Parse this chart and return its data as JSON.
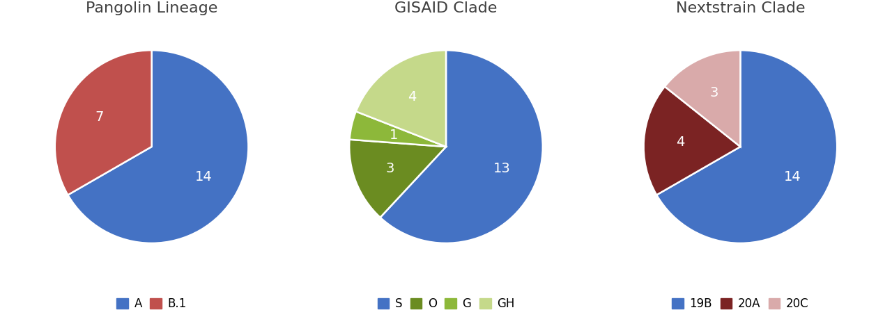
{
  "charts": [
    {
      "title": "Pangolin Lineage",
      "labels": [
        "A",
        "B.1"
      ],
      "values": [
        14,
        7
      ],
      "colors": [
        "#4472C4",
        "#C0504D"
      ],
      "legend_labels": [
        "A",
        "B.1"
      ],
      "startangle": 90,
      "counterclock": false
    },
    {
      "title": "GISAID Clade",
      "labels": [
        "S",
        "O",
        "G",
        "GH"
      ],
      "values": [
        13,
        3,
        1,
        4
      ],
      "colors": [
        "#4472C4",
        "#6B8C21",
        "#8DB83A",
        "#C5D98A"
      ],
      "legend_labels": [
        "S",
        "O",
        "G",
        "GH"
      ],
      "startangle": 90,
      "counterclock": false
    },
    {
      "title": "Nextstrain Clade",
      "labels": [
        "19B",
        "20A",
        "20C"
      ],
      "values": [
        14,
        4,
        3
      ],
      "colors": [
        "#4472C4",
        "#7B2323",
        "#D9AAAA"
      ],
      "legend_labels": [
        "19B",
        "20A",
        "20C"
      ],
      "startangle": 90,
      "counterclock": false
    }
  ],
  "background_color": "#FFFFFF",
  "title_fontsize": 16,
  "label_fontsize": 14,
  "legend_fontsize": 12
}
